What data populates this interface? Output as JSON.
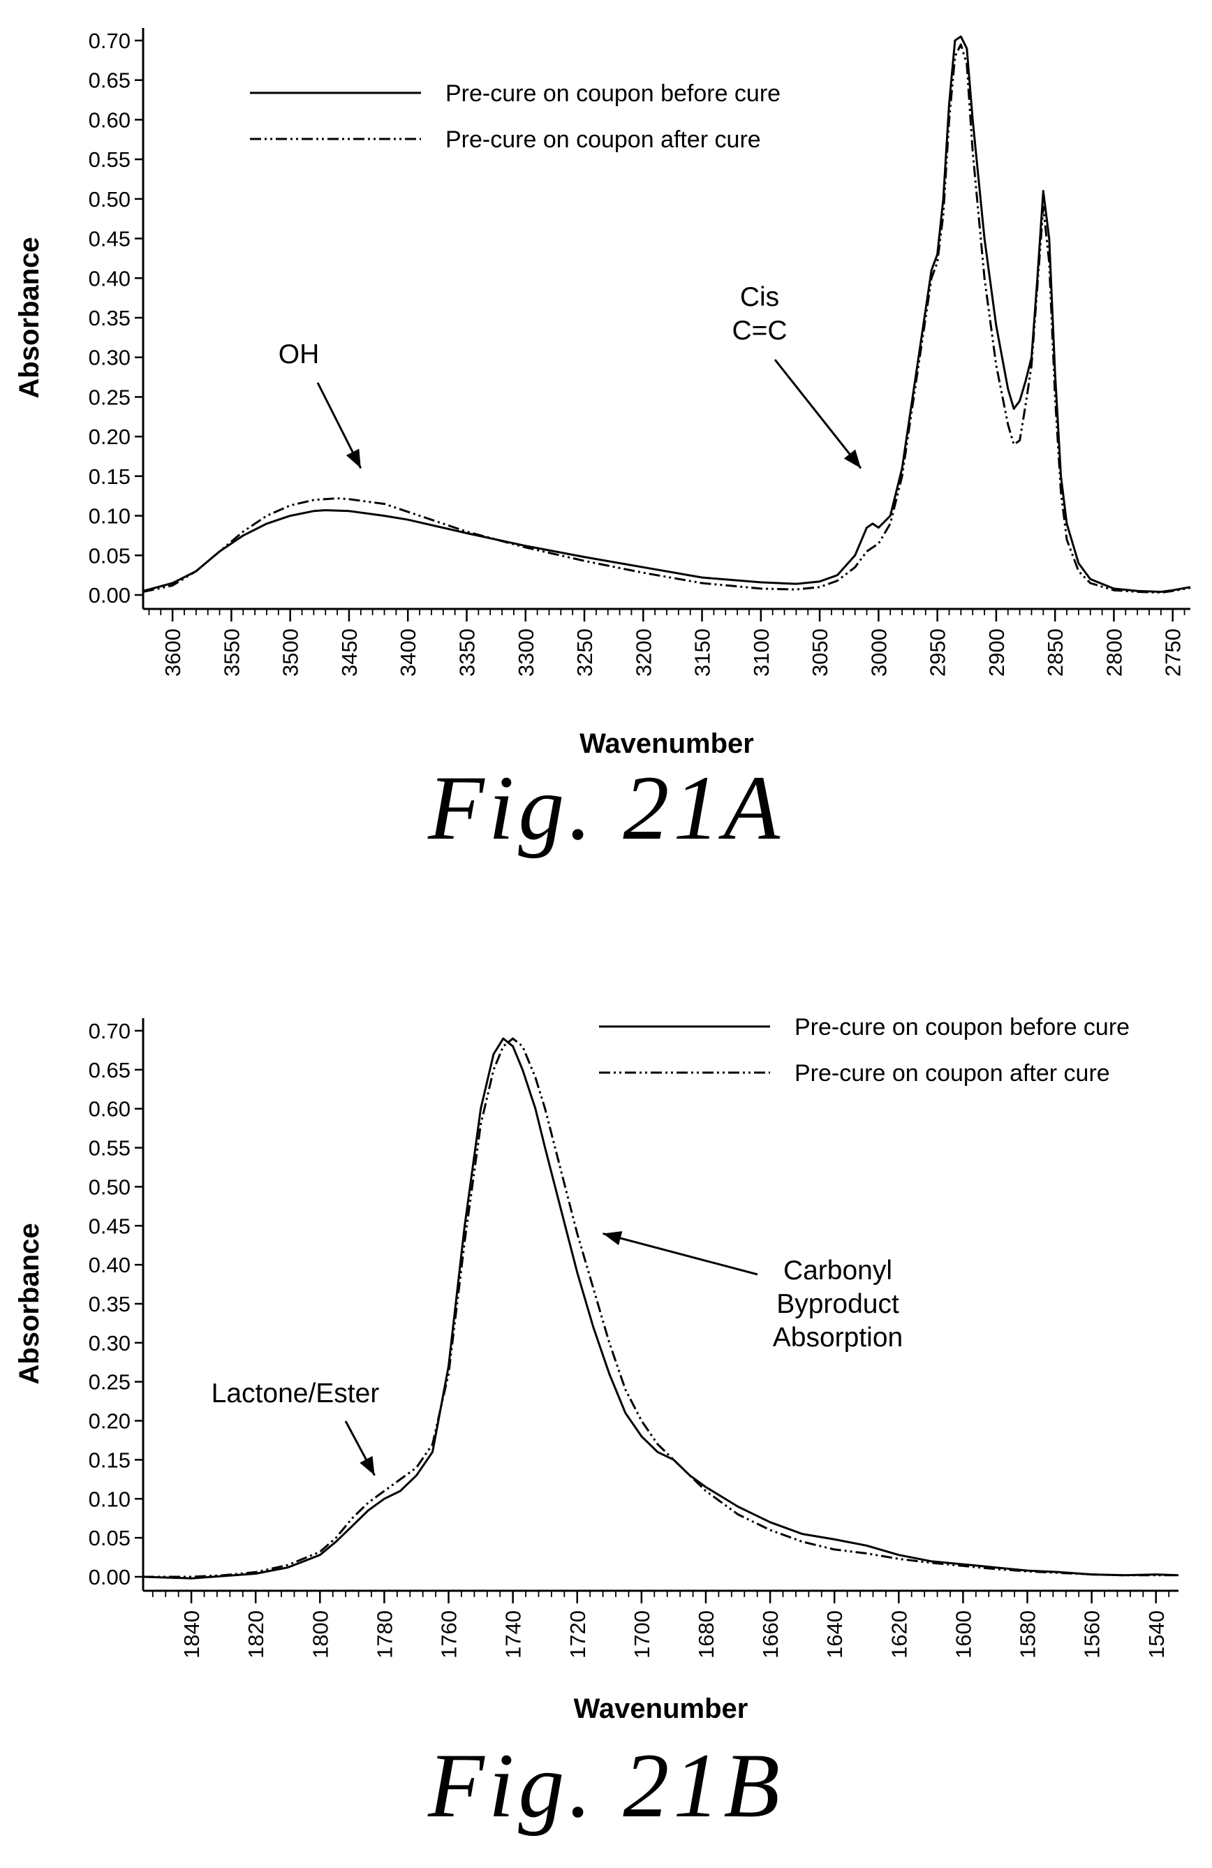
{
  "chart_data": [
    {
      "type": "line",
      "xlabel": "Wavenumber",
      "ylabel": "Absorbance",
      "xlim": [
        3625,
        2735
      ],
      "ylim": [
        0,
        0.7
      ],
      "x_reversed": true,
      "xticks": [
        3600,
        3550,
        3500,
        3450,
        3400,
        3350,
        3300,
        3250,
        3200,
        3150,
        3100,
        3050,
        3000,
        2950,
        2900,
        2850,
        2800,
        2750
      ],
      "yticks": [
        "0.00",
        "0.05",
        "0.10",
        "0.15",
        "0.20",
        "0.25",
        "0.30",
        "0.35",
        "0.40",
        "0.45",
        "0.50",
        "0.55",
        "0.60",
        "0.65",
        "0.70"
      ],
      "legend_position": "top-left",
      "series": [
        {
          "name": "Pre-cure on coupon before cure",
          "style": "solid",
          "x": [
            3625,
            3600,
            3580,
            3560,
            3540,
            3520,
            3500,
            3480,
            3470,
            3450,
            3420,
            3400,
            3350,
            3300,
            3250,
            3200,
            3150,
            3100,
            3070,
            3050,
            3035,
            3020,
            3010,
            3005,
            3000,
            2990,
            2980,
            2970,
            2960,
            2955,
            2950,
            2945,
            2940,
            2935,
            2930,
            2925,
            2920,
            2910,
            2900,
            2890,
            2885,
            2880,
            2875,
            2870,
            2865,
            2860,
            2855,
            2850,
            2845,
            2840,
            2830,
            2820,
            2800,
            2780,
            2760,
            2750,
            2735
          ],
          "y": [
            0.005,
            0.015,
            0.03,
            0.055,
            0.075,
            0.09,
            0.1,
            0.106,
            0.107,
            0.106,
            0.1,
            0.095,
            0.078,
            0.062,
            0.048,
            0.035,
            0.022,
            0.016,
            0.014,
            0.017,
            0.025,
            0.05,
            0.085,
            0.09,
            0.085,
            0.1,
            0.16,
            0.26,
            0.36,
            0.41,
            0.43,
            0.5,
            0.62,
            0.7,
            0.705,
            0.69,
            0.6,
            0.45,
            0.34,
            0.26,
            0.235,
            0.245,
            0.27,
            0.3,
            0.4,
            0.51,
            0.45,
            0.28,
            0.15,
            0.09,
            0.04,
            0.02,
            0.008,
            0.005,
            0.004,
            0.006,
            0.01
          ]
        },
        {
          "name": "Pre-cure on coupon after cure",
          "style": "dash-dot-dot",
          "x": [
            3625,
            3600,
            3580,
            3560,
            3540,
            3520,
            3500,
            3480,
            3460,
            3450,
            3420,
            3400,
            3350,
            3300,
            3250,
            3200,
            3150,
            3100,
            3070,
            3050,
            3035,
            3020,
            3010,
            3000,
            2990,
            2980,
            2970,
            2960,
            2955,
            2950,
            2945,
            2940,
            2935,
            2930,
            2925,
            2920,
            2910,
            2900,
            2890,
            2885,
            2880,
            2875,
            2870,
            2865,
            2860,
            2855,
            2850,
            2845,
            2840,
            2830,
            2820,
            2800,
            2780,
            2760,
            2750,
            2735
          ],
          "y": [
            0.004,
            0.012,
            0.03,
            0.055,
            0.08,
            0.1,
            0.113,
            0.12,
            0.122,
            0.121,
            0.115,
            0.105,
            0.08,
            0.06,
            0.043,
            0.028,
            0.015,
            0.008,
            0.007,
            0.01,
            0.018,
            0.035,
            0.055,
            0.065,
            0.09,
            0.15,
            0.25,
            0.35,
            0.4,
            0.42,
            0.48,
            0.6,
            0.68,
            0.695,
            0.67,
            0.56,
            0.4,
            0.29,
            0.215,
            0.19,
            0.195,
            0.24,
            0.29,
            0.39,
            0.49,
            0.42,
            0.25,
            0.13,
            0.07,
            0.03,
            0.015,
            0.006,
            0.004,
            0.003,
            0.005,
            0.009
          ]
        }
      ],
      "legend_entries": [
        "Pre-cure on coupon before cure",
        "Pre-cure on coupon after cure"
      ],
      "annotations": [
        {
          "lines": [
            "OH"
          ],
          "target_x": 3440,
          "target_y": 0.16
        },
        {
          "lines": [
            "Cis",
            "C=C"
          ],
          "target_x": 3015,
          "target_y": 0.16
        }
      ],
      "caption": "Fig. 21A"
    },
    {
      "type": "line",
      "xlabel": "Wavenumber",
      "ylabel": "Absorbance",
      "xlim": [
        1855,
        1533
      ],
      "ylim": [
        0,
        0.7
      ],
      "x_reversed": true,
      "xticks": [
        1840,
        1820,
        1800,
        1780,
        1760,
        1740,
        1720,
        1700,
        1680,
        1660,
        1640,
        1620,
        1600,
        1580,
        1560,
        1540
      ],
      "yticks": [
        "0.00",
        "0.05",
        "0.10",
        "0.15",
        "0.20",
        "0.25",
        "0.30",
        "0.35",
        "0.40",
        "0.45",
        "0.50",
        "0.55",
        "0.60",
        "0.65",
        "0.70"
      ],
      "legend_position": "top-right",
      "series": [
        {
          "name": "Pre-cure on coupon before cure",
          "style": "solid",
          "x": [
            1855,
            1840,
            1830,
            1820,
            1810,
            1800,
            1795,
            1790,
            1785,
            1780,
            1775,
            1770,
            1765,
            1760,
            1755,
            1750,
            1746,
            1743,
            1740,
            1737,
            1733,
            1730,
            1725,
            1720,
            1715,
            1710,
            1705,
            1700,
            1695,
            1690,
            1685,
            1680,
            1670,
            1660,
            1650,
            1640,
            1630,
            1620,
            1610,
            1600,
            1590,
            1580,
            1570,
            1560,
            1550,
            1540,
            1533
          ],
          "y": [
            0,
            -0.002,
            0.001,
            0.004,
            0.012,
            0.028,
            0.045,
            0.065,
            0.085,
            0.1,
            0.11,
            0.13,
            0.16,
            0.27,
            0.45,
            0.6,
            0.67,
            0.69,
            0.68,
            0.65,
            0.6,
            0.55,
            0.47,
            0.39,
            0.32,
            0.26,
            0.21,
            0.18,
            0.16,
            0.15,
            0.13,
            0.115,
            0.09,
            0.07,
            0.055,
            0.048,
            0.04,
            0.028,
            0.02,
            0.016,
            0.012,
            0.008,
            0.006,
            0.003,
            0.002,
            0.003,
            0.002
          ]
        },
        {
          "name": "Pre-cure on coupon after cure",
          "style": "dash-dot-dot",
          "x": [
            1855,
            1840,
            1830,
            1820,
            1810,
            1800,
            1795,
            1790,
            1785,
            1780,
            1775,
            1770,
            1765,
            1760,
            1755,
            1750,
            1746,
            1743,
            1740,
            1737,
            1733,
            1730,
            1725,
            1720,
            1715,
            1710,
            1705,
            1700,
            1695,
            1690,
            1685,
            1680,
            1670,
            1660,
            1650,
            1640,
            1630,
            1620,
            1610,
            1600,
            1590,
            1580,
            1570,
            1560,
            1550,
            1540,
            1533
          ],
          "y": [
            0,
            0,
            0.002,
            0.006,
            0.015,
            0.032,
            0.05,
            0.075,
            0.095,
            0.11,
            0.125,
            0.14,
            0.17,
            0.26,
            0.43,
            0.58,
            0.65,
            0.68,
            0.69,
            0.68,
            0.64,
            0.6,
            0.52,
            0.44,
            0.37,
            0.3,
            0.24,
            0.2,
            0.17,
            0.15,
            0.13,
            0.11,
            0.08,
            0.06,
            0.045,
            0.035,
            0.03,
            0.023,
            0.018,
            0.014,
            0.01,
            0.007,
            0.005,
            0.003,
            0.002,
            0.002,
            0.002
          ]
        }
      ],
      "legend_entries": [
        "Pre-cure on coupon before cure",
        "Pre-cure on coupon after cure"
      ],
      "annotations": [
        {
          "lines": [
            "Lactone/Ester"
          ],
          "target_x": 1783,
          "target_y": 0.13
        },
        {
          "lines": [
            "Carbonyl",
            "Byproduct",
            "Absorption"
          ],
          "target_x": 1712,
          "target_y": 0.44
        }
      ],
      "caption": "Fig. 21B"
    }
  ]
}
